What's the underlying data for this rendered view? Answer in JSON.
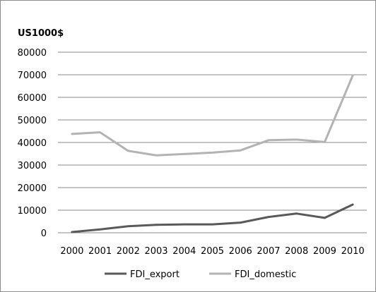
{
  "chart_data": {
    "type": "line",
    "unit_label": "US1000$",
    "x": [
      "2000",
      "2001",
      "2002",
      "2003",
      "2004",
      "2005",
      "2006",
      "2007",
      "2008",
      "2009",
      "2010"
    ],
    "ylim": [
      0,
      80000
    ],
    "yticks": [
      0,
      10000,
      20000,
      30000,
      40000,
      50000,
      60000,
      70000,
      80000
    ],
    "grid": true,
    "legend_position": "bottom",
    "series": [
      {
        "name": "FDI_export",
        "color": "#595959",
        "values": [
          300,
          1500,
          2900,
          3500,
          3700,
          3700,
          4500,
          7000,
          8500,
          6600,
          12500
        ]
      },
      {
        "name": "FDI_domestic",
        "color": "#b3b3b3",
        "values": [
          43800,
          44500,
          36300,
          34300,
          34900,
          35500,
          36500,
          41000,
          41300,
          40200,
          69700
        ]
      }
    ]
  }
}
